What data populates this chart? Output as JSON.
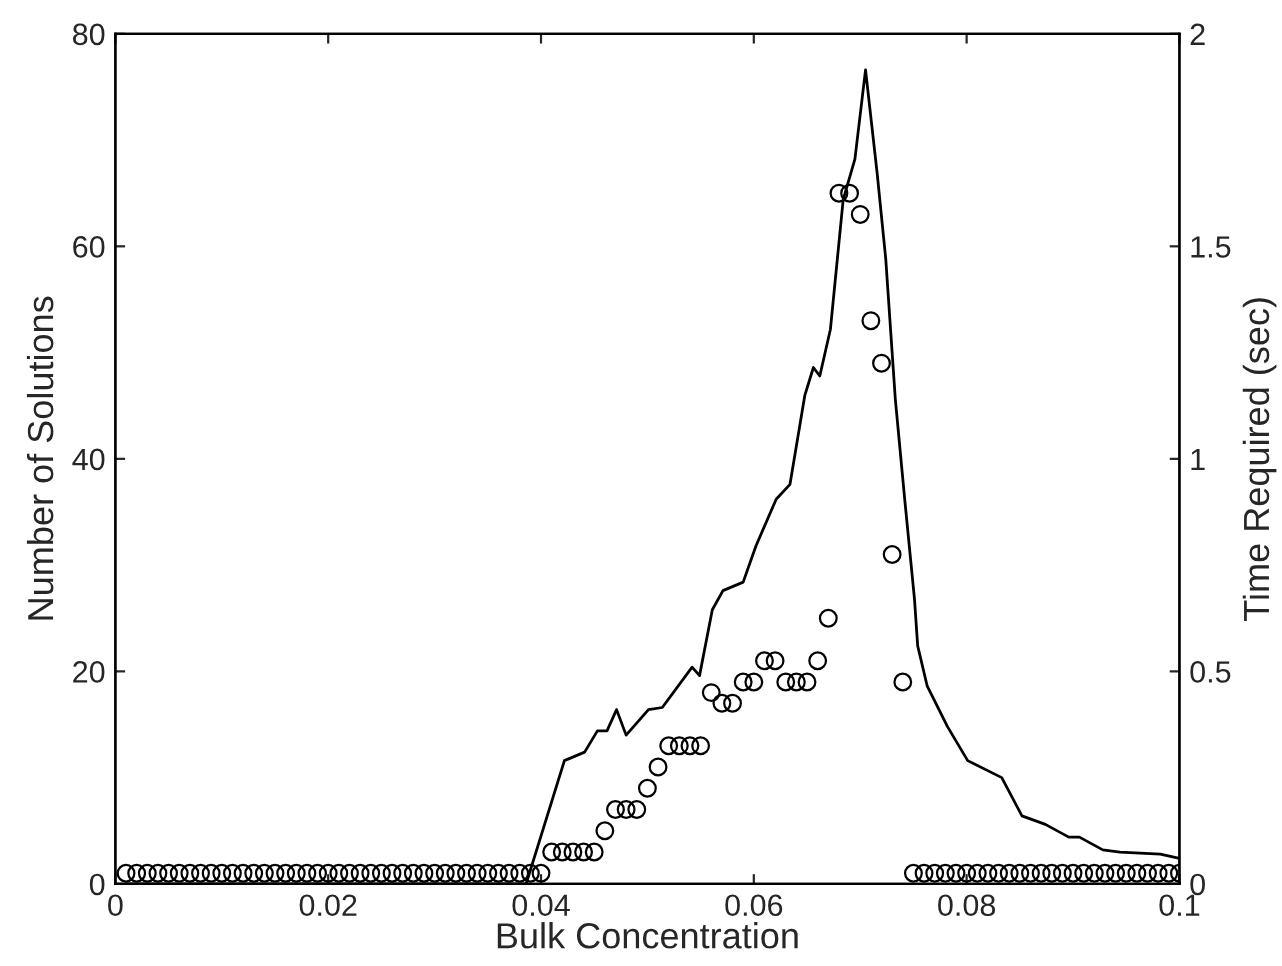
{
  "chart_data": {
    "type": "scatter",
    "xlabel": "Bulk Concentration",
    "ylabel": "Number of Solutions",
    "y2label": "Time Required (sec)",
    "xlim": [
      0,
      0.1
    ],
    "xticks": [
      0,
      0.02,
      0.04,
      0.06,
      0.08,
      0.1
    ],
    "ylim": [
      0,
      80
    ],
    "yticks": [
      0,
      20,
      40,
      60,
      80
    ],
    "y2lim": [
      0,
      2
    ],
    "y2ticks": [
      0,
      0.5,
      1,
      1.5,
      2
    ],
    "grid": false,
    "series": [
      {
        "marker": "circle",
        "color": "#000000",
        "x": [
          0.001,
          0.002,
          0.003,
          0.004,
          0.005,
          0.006,
          0.007,
          0.008,
          0.009,
          0.01,
          0.011,
          0.012,
          0.013,
          0.014,
          0.015,
          0.016,
          0.017,
          0.018,
          0.019,
          0.02,
          0.021,
          0.022,
          0.023,
          0.024,
          0.025,
          0.026,
          0.027,
          0.028,
          0.029,
          0.03,
          0.031,
          0.032,
          0.033,
          0.034,
          0.035,
          0.036,
          0.037,
          0.038,
          0.039,
          0.04,
          0.041,
          0.042,
          0.043,
          0.044,
          0.045,
          0.046,
          0.047,
          0.048,
          0.049,
          0.05,
          0.051,
          0.052,
          0.053,
          0.054,
          0.055,
          0.056,
          0.057,
          0.058,
          0.059,
          0.06,
          0.061,
          0.062,
          0.063,
          0.064,
          0.065,
          0.066,
          0.067,
          0.068,
          0.069,
          0.07,
          0.071,
          0.072,
          0.073,
          0.074,
          0.075,
          0.076,
          0.077,
          0.078,
          0.079,
          0.08,
          0.081,
          0.082,
          0.083,
          0.084,
          0.085,
          0.086,
          0.087,
          0.088,
          0.089,
          0.09,
          0.091,
          0.092,
          0.093,
          0.094,
          0.095,
          0.096,
          0.097,
          0.098,
          0.099,
          0.1
        ],
        "values": [
          1,
          1,
          1,
          1,
          1,
          1,
          1,
          1,
          1,
          1,
          1,
          1,
          1,
          1,
          1,
          1,
          1,
          1,
          1,
          1,
          1,
          1,
          1,
          1,
          1,
          1,
          1,
          1,
          1,
          1,
          1,
          1,
          1,
          1,
          1,
          1,
          1,
          1,
          1,
          1,
          3,
          3,
          3,
          3,
          3,
          5,
          7,
          7,
          7,
          9,
          11,
          13,
          13,
          13,
          13,
          18,
          17,
          17,
          19,
          19,
          21,
          21,
          19,
          19,
          19,
          21,
          25,
          65,
          65,
          63,
          53,
          49,
          31,
          19,
          1,
          1,
          1,
          1,
          1,
          1,
          1,
          1,
          1,
          1,
          1,
          1,
          1,
          1,
          1,
          1,
          1,
          1,
          1,
          1,
          1,
          1,
          1,
          1,
          1,
          1
        ]
      },
      {
        "type": "line",
        "axis": "y2",
        "marker": "none",
        "line_style": "solid",
        "color": "#000000",
        "x": [
          0.001,
          0.0386,
          0.0422,
          0.0441,
          0.0453,
          0.0462,
          0.0471,
          0.048,
          0.0501,
          0.0514,
          0.0542,
          0.0549,
          0.0561,
          0.0571,
          0.059,
          0.0602,
          0.0621,
          0.0634,
          0.0648,
          0.0656,
          0.0662,
          0.0672,
          0.0684,
          0.0695,
          0.0705,
          0.0716,
          0.0724,
          0.0733,
          0.0742,
          0.0751,
          0.0754,
          0.0763,
          0.0782,
          0.0801,
          0.0833,
          0.0852,
          0.0874,
          0.0896,
          0.0906,
          0.0928,
          0.0944,
          0.0982,
          0.1
        ],
        "values": [
          0,
          0,
          0.29,
          0.31,
          0.36,
          0.36,
          0.41,
          0.35,
          0.41,
          0.415,
          0.51,
          0.49,
          0.645,
          0.69,
          0.71,
          0.795,
          0.905,
          0.94,
          1.15,
          1.215,
          1.195,
          1.305,
          1.61,
          1.705,
          1.915,
          1.67,
          1.47,
          1.14,
          0.9,
          0.67,
          0.56,
          0.465,
          0.37,
          0.29,
          0.25,
          0.16,
          0.14,
          0.11,
          0.11,
          0.08,
          0.075,
          0.07,
          0.06
        ]
      }
    ]
  }
}
